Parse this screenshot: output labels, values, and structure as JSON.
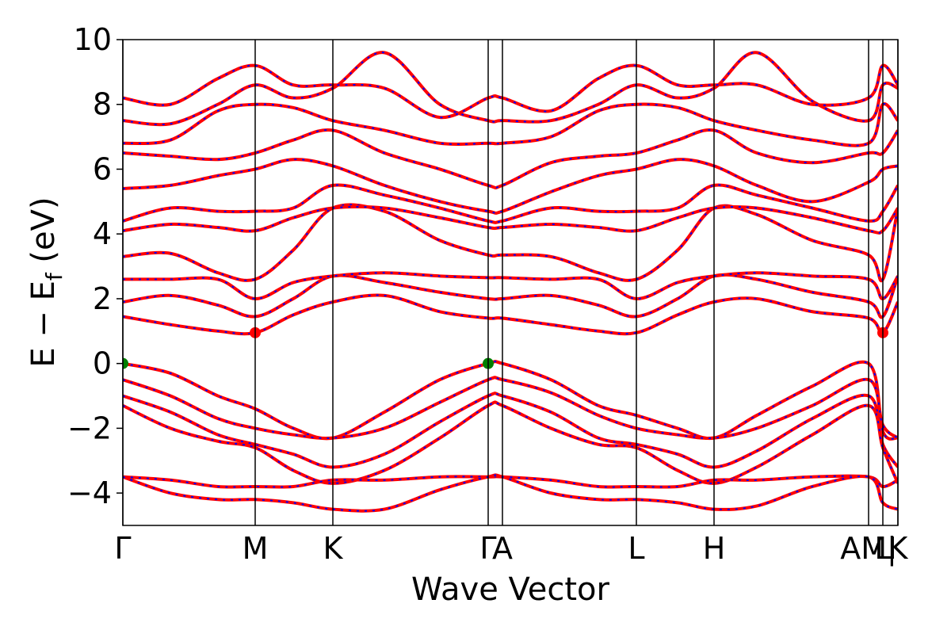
{
  "chart_data": {
    "type": "line",
    "xlabel": "Wave Vector",
    "ylabel": [
      "E − E",
      "f",
      " (eV)"
    ],
    "xlim": [
      0,
      978
    ],
    "ylim": [
      -5,
      10
    ],
    "yticks": [
      {
        "value": -4,
        "label": "−4"
      },
      {
        "value": -2,
        "label": "−2"
      },
      0,
      2,
      4,
      6,
      8,
      10
    ],
    "xticks": [
      {
        "value": 0,
        "label": "Γ"
      },
      {
        "value": 167,
        "label": "M"
      },
      {
        "value": 265,
        "label": "K"
      },
      {
        "value": 461,
        "label": "Γ"
      },
      {
        "value": 479,
        "label": "A"
      },
      {
        "value": 648,
        "label": "L"
      },
      {
        "value": 746,
        "label": "H"
      },
      {
        "value": 941,
        "label": "AM|"
      },
      {
        "value": 959,
        "label": "L"
      },
      {
        "value": 978,
        "label": "K"
      }
    ],
    "dash_color": "#0000ff",
    "x": [
      0,
      60,
      120,
      167,
      215,
      265,
      330,
      400,
      461,
      479,
      540,
      600,
      648,
      700,
      746,
      800,
      870,
      941,
      959,
      978
    ],
    "series": [
      {
        "color": "#ff0000",
        "values": [
          0,
          -0.3,
          -1.0,
          -1.4,
          -2.0,
          -2.3,
          -1.5,
          -0.5,
          0,
          0,
          -0.5,
          -1.3,
          -1.6,
          -2.0,
          -2.3,
          -1.6,
          -0.7,
          0,
          -2.1,
          -2.3
        ]
      },
      {
        "color": "#ff0000",
        "values": [
          -0.5,
          -1.0,
          -1.7,
          -2.0,
          -2.2,
          -2.3,
          -2.0,
          -1.2,
          -0.5,
          -0.5,
          -0.9,
          -1.6,
          -2.0,
          -2.2,
          -2.3,
          -2.0,
          -1.3,
          -0.5,
          -1.9,
          -2.3
        ]
      },
      {
        "color": "#ff0000",
        "values": [
          -1.0,
          -1.5,
          -2.2,
          -2.5,
          -2.8,
          -3.2,
          -2.8,
          -1.8,
          -1.0,
          -1.0,
          -1.5,
          -2.3,
          -2.5,
          -2.8,
          -3.2,
          -2.7,
          -1.7,
          -1.0,
          -2.5,
          -3.2
        ]
      },
      {
        "color": "#ff0000",
        "values": [
          -1.3,
          -2.0,
          -2.4,
          -2.6,
          -3.3,
          -3.7,
          -3.3,
          -2.3,
          -1.3,
          -1.3,
          -2.0,
          -2.5,
          -2.6,
          -3.3,
          -3.7,
          -3.2,
          -2.2,
          -1.3,
          -2.6,
          -3.7
        ]
      },
      {
        "color": "#ff0000",
        "values": [
          -3.5,
          -3.6,
          -3.8,
          -3.8,
          -3.8,
          -3.6,
          -3.6,
          -3.5,
          -3.5,
          -3.5,
          -3.6,
          -3.8,
          -3.8,
          -3.8,
          -3.6,
          -3.6,
          -3.5,
          -3.5,
          -3.8,
          -3.6
        ]
      },
      {
        "color": "#ff0000",
        "values": [
          -3.5,
          -4.0,
          -4.2,
          -4.2,
          -4.3,
          -4.5,
          -4.5,
          -3.9,
          -3.5,
          -3.5,
          -4.0,
          -4.2,
          -4.2,
          -4.3,
          -4.5,
          -4.4,
          -3.8,
          -3.5,
          -4.3,
          -4.5
        ]
      },
      {
        "color": "#ff0000",
        "values": [
          1.45,
          1.2,
          1.0,
          0.95,
          1.5,
          1.9,
          2.1,
          1.6,
          1.4,
          1.4,
          1.2,
          1.0,
          0.95,
          1.5,
          1.9,
          2.0,
          1.6,
          1.4,
          0.95,
          1.9
        ]
      },
      {
        "color": "#ff0000",
        "values": [
          1.9,
          2.1,
          1.8,
          1.45,
          2.0,
          2.7,
          2.5,
          2.2,
          2.0,
          2.0,
          2.1,
          1.8,
          1.45,
          2.0,
          2.7,
          2.6,
          2.2,
          1.9,
          1.45,
          2.7
        ]
      },
      {
        "color": "#ff0000",
        "values": [
          2.6,
          2.6,
          2.6,
          2.0,
          2.5,
          2.7,
          2.8,
          2.7,
          2.65,
          2.65,
          2.6,
          2.6,
          2.0,
          2.5,
          2.7,
          2.8,
          2.7,
          2.6,
          2.0,
          2.7
        ]
      },
      {
        "color": "#ff0000",
        "values": [
          3.3,
          3.4,
          2.8,
          2.6,
          3.5,
          4.8,
          4.7,
          3.8,
          3.35,
          3.35,
          3.3,
          2.8,
          2.6,
          3.5,
          4.8,
          4.6,
          3.8,
          3.35,
          2.6,
          4.8
        ]
      },
      {
        "color": "#ff0000",
        "values": [
          4.1,
          4.3,
          4.2,
          4.1,
          4.5,
          4.8,
          4.8,
          4.5,
          4.2,
          4.2,
          4.3,
          4.2,
          4.1,
          4.5,
          4.8,
          4.8,
          4.5,
          4.1,
          4.1,
          4.8
        ]
      },
      {
        "color": "#ff0000",
        "values": [
          4.4,
          4.8,
          4.7,
          4.7,
          4.8,
          5.5,
          5.2,
          4.8,
          4.4,
          4.4,
          4.8,
          4.7,
          4.7,
          4.8,
          5.5,
          5.2,
          4.8,
          4.4,
          4.7,
          5.5
        ]
      },
      {
        "color": "#ff0000",
        "values": [
          5.4,
          5.5,
          5.8,
          6.0,
          6.3,
          6.1,
          5.5,
          5.0,
          4.7,
          4.7,
          5.3,
          5.8,
          6.0,
          6.3,
          6.1,
          5.5,
          5.0,
          5.6,
          6.0,
          6.1
        ]
      },
      {
        "color": "#ff0000",
        "values": [
          6.5,
          6.4,
          6.3,
          6.5,
          6.9,
          7.2,
          6.5,
          6.0,
          5.5,
          5.5,
          6.2,
          6.4,
          6.5,
          6.9,
          7.2,
          6.5,
          6.2,
          6.5,
          6.5,
          7.2
        ]
      },
      {
        "color": "#ff0000",
        "values": [
          6.8,
          6.9,
          7.8,
          8.0,
          7.9,
          7.5,
          7.2,
          6.8,
          6.8,
          6.8,
          7.0,
          7.8,
          8.0,
          7.9,
          7.5,
          7.2,
          6.9,
          6.8,
          8.0,
          7.5
        ]
      },
      {
        "color": "#ff0000",
        "values": [
          7.5,
          7.4,
          8.0,
          8.6,
          8.2,
          8.5,
          9.6,
          8.0,
          7.5,
          7.5,
          7.5,
          8.0,
          8.6,
          8.2,
          8.5,
          9.6,
          8.1,
          7.5,
          8.6,
          8.5
        ]
      },
      {
        "color": "#ff0000",
        "values": [
          8.2,
          8.0,
          8.8,
          9.2,
          8.6,
          8.6,
          8.5,
          7.6,
          8.2,
          8.2,
          7.8,
          8.8,
          9.2,
          8.6,
          8.6,
          8.6,
          8.0,
          8.2,
          9.2,
          8.6
        ]
      }
    ],
    "markers": [
      {
        "x": 0,
        "y": 0,
        "color": "#007f00"
      },
      {
        "x": 461,
        "y": 0,
        "color": "#007f00"
      },
      {
        "x": 167,
        "y": 0.95,
        "color": "#ff0000"
      },
      {
        "x": 959,
        "y": 0.95,
        "color": "#ff0000"
      }
    ]
  }
}
